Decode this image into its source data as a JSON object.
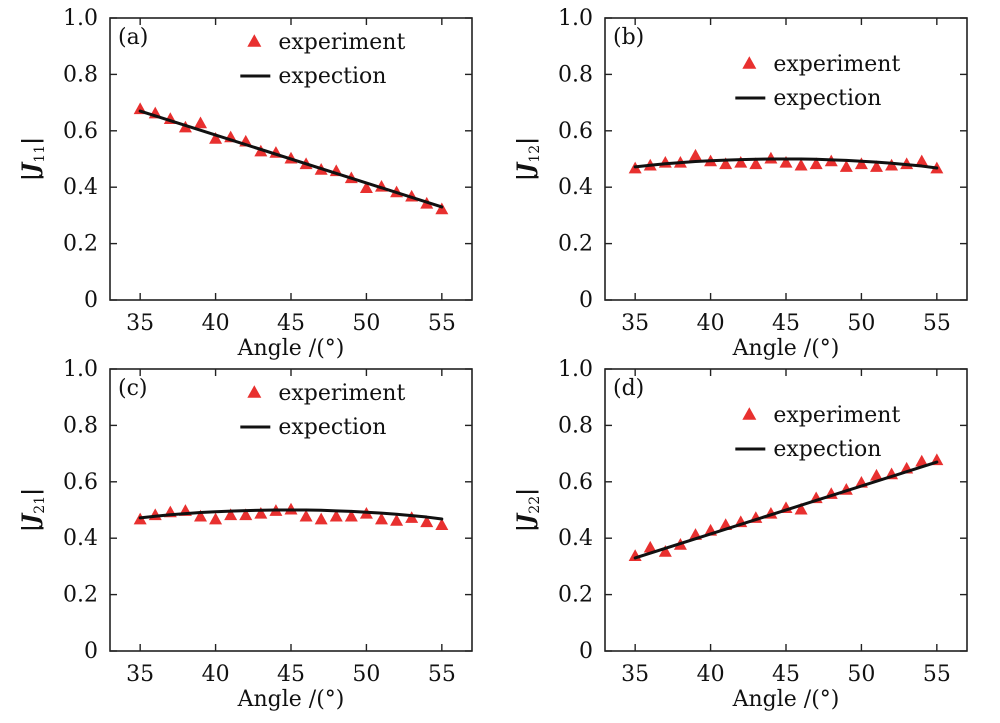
{
  "colors": {
    "marker": "#e8302f",
    "line": "#111111",
    "axis": "#222222"
  },
  "chart_data": [
    {
      "type": "scatter",
      "panel_label": "(a)",
      "ylabel_main": "|J",
      "ylabel_sub": "11",
      "ylabel_end": "|",
      "xlabel": "Angle /(°)",
      "xlim": [
        33,
        57
      ],
      "ylim": [
        0,
        1.0
      ],
      "xticks": [
        35,
        40,
        45,
        50,
        55
      ],
      "yticks": [
        0,
        0.2,
        0.4,
        0.6,
        0.8,
        1.0
      ],
      "ytick_labels": [
        "0",
        "0.2",
        "0.4",
        "0.6",
        "0.8",
        "1.0"
      ],
      "legend_position": "top-center",
      "series": [
        {
          "name": "experiment",
          "style": "triangle-marker",
          "x": [
            35,
            36,
            37,
            38,
            39,
            40,
            41,
            42,
            43,
            44,
            45,
            46,
            47,
            48,
            49,
            50,
            51,
            52,
            53,
            54,
            55
          ],
          "y": [
            0.675,
            0.66,
            0.64,
            0.61,
            0.625,
            0.57,
            0.575,
            0.56,
            0.525,
            0.52,
            0.5,
            0.48,
            0.46,
            0.455,
            0.43,
            0.395,
            0.4,
            0.38,
            0.365,
            0.34,
            0.32
          ]
        },
        {
          "name": "expection",
          "style": "line",
          "x": [
            35,
            55
          ],
          "y": [
            0.67,
            0.33
          ]
        }
      ]
    },
    {
      "type": "scatter",
      "panel_label": "(b)",
      "ylabel_main": "|J",
      "ylabel_sub": "12",
      "ylabel_end": "|",
      "xlabel": "Angle /(°)",
      "xlim": [
        33,
        57
      ],
      "ylim": [
        0,
        1.0
      ],
      "xticks": [
        35,
        40,
        45,
        50,
        55
      ],
      "yticks": [
        0,
        0.2,
        0.4,
        0.6,
        0.8,
        1.0
      ],
      "ytick_labels": [
        "0",
        "0.2",
        "0.4",
        "0.6",
        "0.8",
        "1.0"
      ],
      "legend_position": "top-center",
      "series": [
        {
          "name": "experiment",
          "style": "triangle-marker",
          "x": [
            35,
            36,
            37,
            38,
            39,
            40,
            41,
            42,
            43,
            44,
            45,
            46,
            47,
            48,
            49,
            50,
            51,
            52,
            53,
            54,
            55
          ],
          "y": [
            0.465,
            0.475,
            0.485,
            0.485,
            0.51,
            0.49,
            0.48,
            0.485,
            0.48,
            0.5,
            0.485,
            0.475,
            0.48,
            0.49,
            0.47,
            0.48,
            0.47,
            0.475,
            0.48,
            0.49,
            0.465
          ]
        },
        {
          "name": "expection",
          "style": "line",
          "x": [
            35,
            36,
            37,
            38,
            39,
            40,
            41,
            42,
            43,
            44,
            45,
            46,
            47,
            48,
            49,
            50,
            51,
            52,
            53,
            54,
            55
          ],
          "y": [
            0.472,
            0.478,
            0.483,
            0.487,
            0.491,
            0.494,
            0.496,
            0.498,
            0.499,
            0.5,
            0.5,
            0.5,
            0.499,
            0.497,
            0.495,
            0.492,
            0.489,
            0.485,
            0.48,
            0.475,
            0.468
          ]
        }
      ]
    },
    {
      "type": "scatter",
      "panel_label": "(c)",
      "ylabel_main": "|J",
      "ylabel_sub": "21",
      "ylabel_end": "|",
      "xlabel": "Angle /(°)",
      "xlim": [
        33,
        57
      ],
      "ylim": [
        0,
        1.0
      ],
      "xticks": [
        35,
        40,
        45,
        50,
        55
      ],
      "yticks": [
        0,
        0.2,
        0.4,
        0.6,
        0.8,
        1.0
      ],
      "ytick_labels": [
        "0",
        "0.2",
        "0.4",
        "0.6",
        "0.8",
        "1.0"
      ],
      "legend_position": "top-center",
      "series": [
        {
          "name": "experiment",
          "style": "triangle-marker",
          "x": [
            35,
            36,
            37,
            38,
            39,
            40,
            41,
            42,
            43,
            44,
            45,
            46,
            47,
            48,
            49,
            50,
            51,
            52,
            53,
            54,
            55
          ],
          "y": [
            0.465,
            0.48,
            0.49,
            0.495,
            0.475,
            0.465,
            0.48,
            0.48,
            0.485,
            0.495,
            0.5,
            0.475,
            0.465,
            0.475,
            0.475,
            0.485,
            0.465,
            0.46,
            0.47,
            0.455,
            0.445
          ]
        },
        {
          "name": "expection",
          "style": "line",
          "x": [
            35,
            36,
            37,
            38,
            39,
            40,
            41,
            42,
            43,
            44,
            45,
            46,
            47,
            48,
            49,
            50,
            51,
            52,
            53,
            54,
            55
          ],
          "y": [
            0.472,
            0.478,
            0.483,
            0.487,
            0.491,
            0.494,
            0.496,
            0.498,
            0.499,
            0.5,
            0.5,
            0.5,
            0.499,
            0.497,
            0.495,
            0.492,
            0.489,
            0.485,
            0.48,
            0.475,
            0.468
          ]
        }
      ]
    },
    {
      "type": "scatter",
      "panel_label": "(d)",
      "ylabel_main": "|J",
      "ylabel_sub": "22",
      "ylabel_end": "|",
      "xlabel": "Angle /(°)",
      "xlim": [
        33,
        57
      ],
      "ylim": [
        0,
        1.0
      ],
      "xticks": [
        35,
        40,
        45,
        50,
        55
      ],
      "yticks": [
        0,
        0.2,
        0.4,
        0.6,
        0.8,
        1.0
      ],
      "ytick_labels": [
        "0",
        "0.2",
        "0.4",
        "0.6",
        "0.8",
        "1.0"
      ],
      "legend_position": "top-center",
      "series": [
        {
          "name": "experiment",
          "style": "triangle-marker",
          "x": [
            35,
            36,
            37,
            38,
            39,
            40,
            41,
            42,
            43,
            44,
            45,
            46,
            47,
            48,
            49,
            50,
            51,
            52,
            53,
            54,
            55
          ],
          "y": [
            0.335,
            0.365,
            0.35,
            0.375,
            0.41,
            0.425,
            0.445,
            0.455,
            0.47,
            0.485,
            0.505,
            0.5,
            0.54,
            0.555,
            0.57,
            0.595,
            0.62,
            0.625,
            0.645,
            0.67,
            0.675
          ]
        },
        {
          "name": "expection",
          "style": "line",
          "x": [
            35,
            55
          ],
          "y": [
            0.33,
            0.67
          ]
        }
      ]
    }
  ]
}
